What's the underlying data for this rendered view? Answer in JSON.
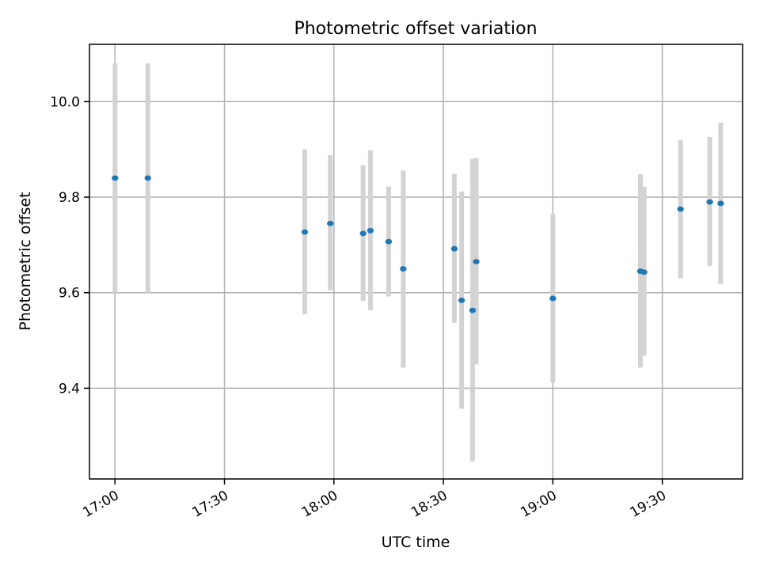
{
  "chart_data": {
    "type": "scatter",
    "title": "Photometric offset variation",
    "xlabel": "UTC time",
    "ylabel": "Photometric offset",
    "x_axis": "time",
    "xlim": [
      "16:53",
      "19:52"
    ],
    "ylim": [
      9.21,
      10.12
    ],
    "x_ticks": [
      "17:00",
      "17:30",
      "18:00",
      "18:30",
      "19:00",
      "19:30"
    ],
    "y_ticks": [
      9.4,
      9.6,
      9.8,
      10.0
    ],
    "y_tick_labels": [
      "9.4",
      "9.6",
      "9.8",
      "10.0"
    ],
    "grid": true,
    "colors": {
      "marker": "#1f77b4",
      "errorbar": "#d3d3d3"
    },
    "points": [
      {
        "x": "17:00",
        "y": 9.84,
        "err_low": 9.6,
        "err_high": 10.08
      },
      {
        "x": "17:09",
        "y": 9.84,
        "err_low": 9.6,
        "err_high": 10.08
      },
      {
        "x": "17:52",
        "y": 9.727,
        "err_low": 9.555,
        "err_high": 9.9
      },
      {
        "x": "17:59",
        "y": 9.745,
        "err_low": 9.605,
        "err_high": 9.888
      },
      {
        "x": "18:08",
        "y": 9.724,
        "err_low": 9.583,
        "err_high": 9.867
      },
      {
        "x": "18:10",
        "y": 9.73,
        "err_low": 9.563,
        "err_high": 9.898
      },
      {
        "x": "18:15",
        "y": 9.707,
        "err_low": 9.592,
        "err_high": 9.822
      },
      {
        "x": "18:19",
        "y": 9.65,
        "err_low": 9.443,
        "err_high": 9.856
      },
      {
        "x": "18:33",
        "y": 9.692,
        "err_low": 9.537,
        "err_high": 9.849
      },
      {
        "x": "18:35",
        "y": 9.584,
        "err_low": 9.357,
        "err_high": 9.812
      },
      {
        "x": "18:38",
        "y": 9.563,
        "err_low": 9.247,
        "err_high": 9.88
      },
      {
        "x": "18:39",
        "y": 9.665,
        "err_low": 9.45,
        "err_high": 9.882
      },
      {
        "x": "19:00",
        "y": 9.588,
        "err_low": 9.412,
        "err_high": 9.765
      },
      {
        "x": "19:24",
        "y": 9.645,
        "err_low": 9.443,
        "err_high": 9.848
      },
      {
        "x": "19:25",
        "y": 9.643,
        "err_low": 9.468,
        "err_high": 9.822
      },
      {
        "x": "19:35",
        "y": 9.775,
        "err_low": 9.63,
        "err_high": 9.92
      },
      {
        "x": "19:43",
        "y": 9.79,
        "err_low": 9.656,
        "err_high": 9.926
      },
      {
        "x": "19:46",
        "y": 9.787,
        "err_low": 9.618,
        "err_high": 9.956
      }
    ]
  }
}
